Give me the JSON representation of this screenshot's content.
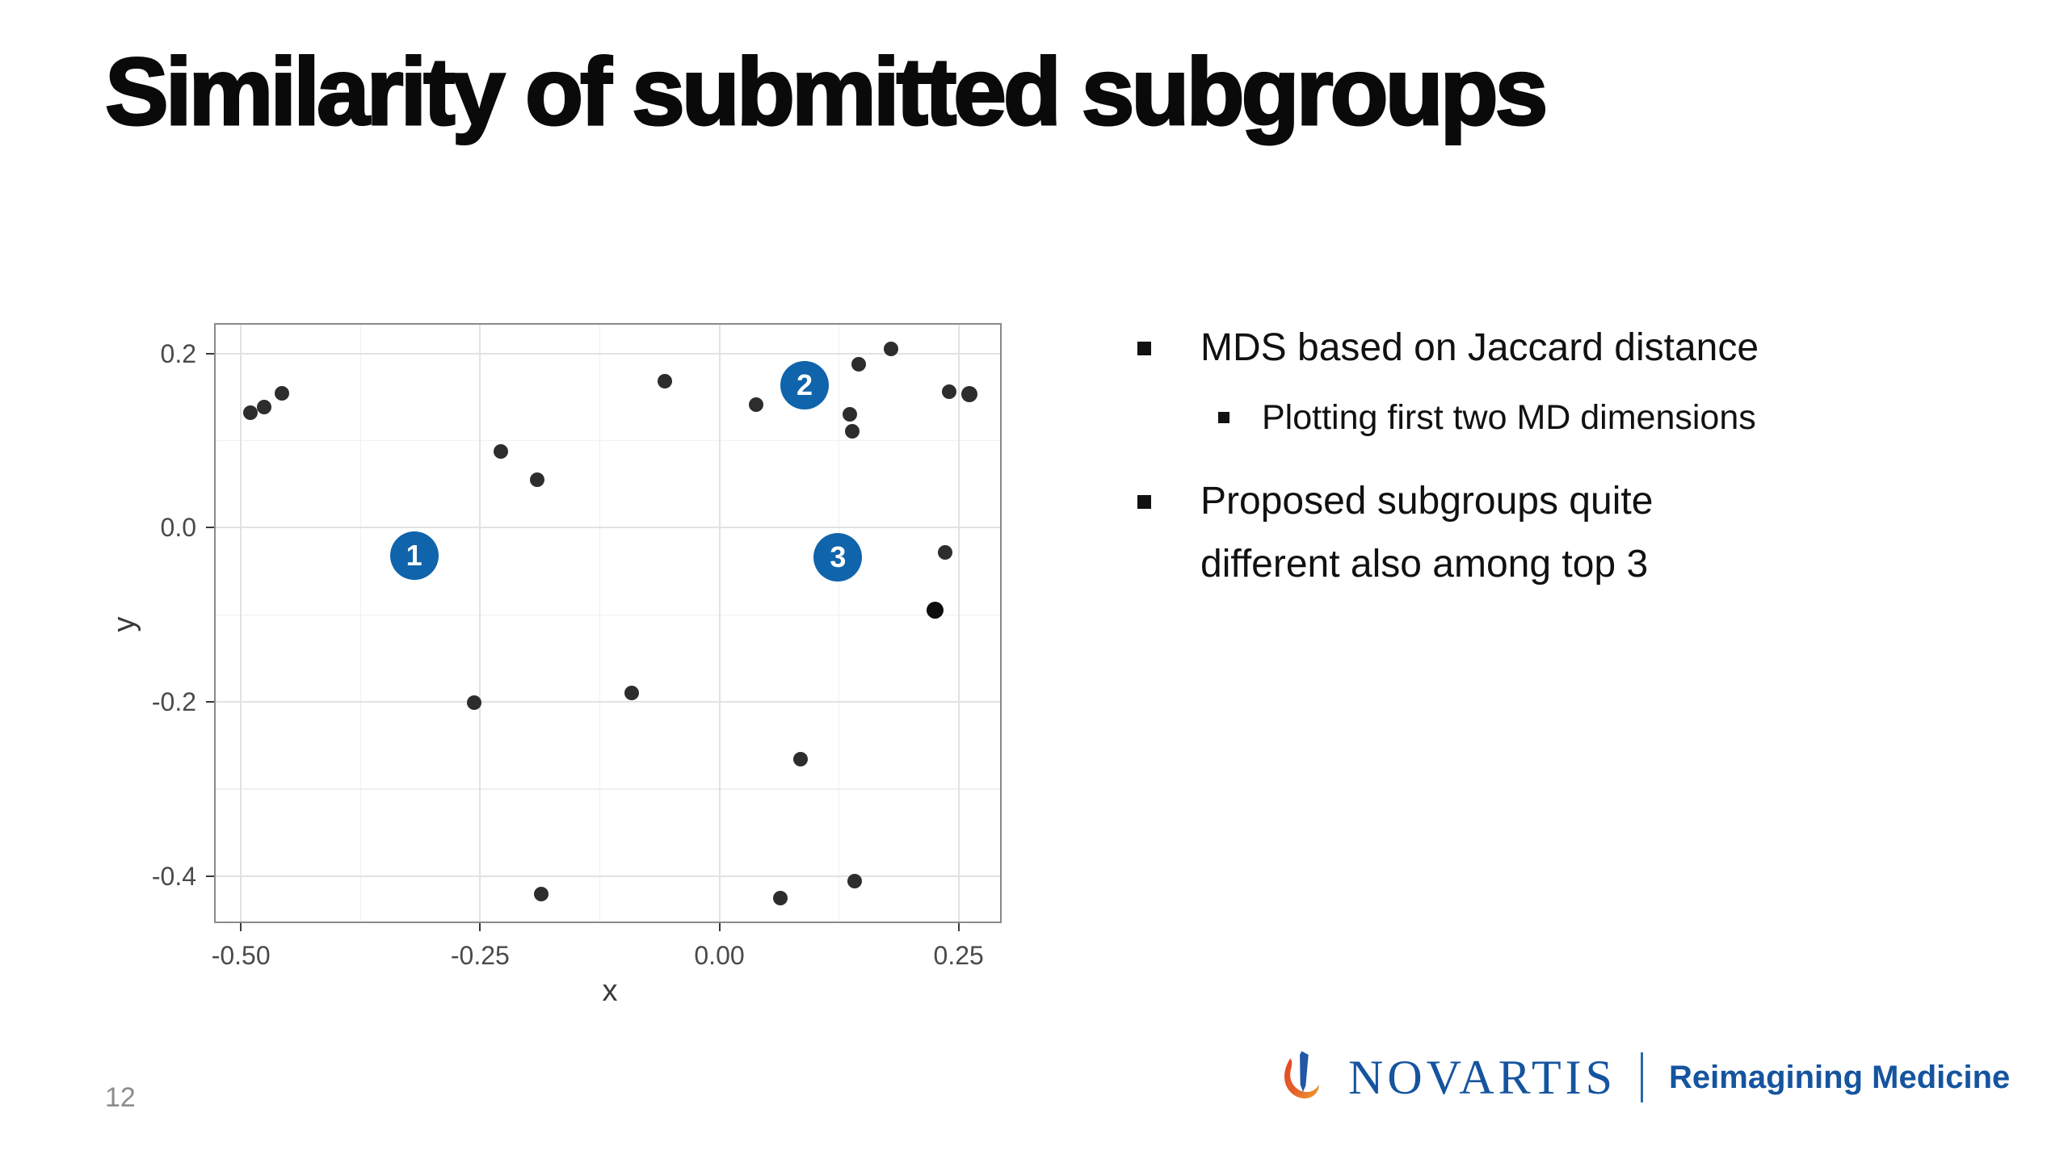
{
  "slide": {
    "title": "Similarity of submitted subgroups"
  },
  "bullets": [
    {
      "level": 1,
      "text": "MDS based on Jaccard distance"
    },
    {
      "level": 2,
      "text": "Plotting first two MD dimensions"
    },
    {
      "level": 1,
      "text": "Proposed subgroups quite different also among top 3"
    }
  ],
  "chart_data": {
    "type": "scatter",
    "title": "",
    "xlabel": "x",
    "ylabel": "y",
    "xlim": [
      -0.528,
      0.295
    ],
    "ylim": [
      -0.454,
      0.235
    ],
    "grid": "major+minor",
    "legend": "none",
    "x_ticks": [
      {
        "v": -0.5,
        "label": "-0.50"
      },
      {
        "v": -0.25,
        "label": "-0.25"
      },
      {
        "v": 0.0,
        "label": "0.00"
      },
      {
        "v": 0.25,
        "label": "0.25"
      }
    ],
    "y_ticks": [
      {
        "v": 0.2,
        "label": "0.2"
      },
      {
        "v": 0.0,
        "label": "0.0"
      },
      {
        "v": -0.2,
        "label": "-0.2"
      },
      {
        "v": -0.4,
        "label": "-0.4"
      }
    ],
    "x_minor": [
      -0.375,
      -0.125,
      0.125
    ],
    "y_minor": [
      0.1,
      -0.1,
      -0.3
    ],
    "points": [
      {
        "x": -0.49,
        "y": 0.132
      },
      {
        "x": -0.476,
        "y": 0.139
      },
      {
        "x": -0.457,
        "y": 0.154
      },
      {
        "x": -0.228,
        "y": 0.088
      },
      {
        "x": -0.19,
        "y": 0.055
      },
      {
        "x": -0.057,
        "y": 0.168
      },
      {
        "x": 0.038,
        "y": 0.141
      },
      {
        "x": 0.095,
        "y": 0.178
      },
      {
        "x": 0.146,
        "y": 0.188
      },
      {
        "x": 0.179,
        "y": 0.205
      },
      {
        "x": 0.136,
        "y": 0.13
      },
      {
        "x": 0.139,
        "y": 0.111
      },
      {
        "x": 0.24,
        "y": 0.156
      },
      {
        "x": 0.261,
        "y": 0.153,
        "s": 20
      },
      {
        "x": 0.236,
        "y": -0.028
      },
      {
        "x": 0.225,
        "y": -0.095,
        "s": 21,
        "emphasis": true
      },
      {
        "x": -0.256,
        "y": -0.201
      },
      {
        "x": -0.092,
        "y": -0.19
      },
      {
        "x": 0.085,
        "y": -0.266
      },
      {
        "x": -0.186,
        "y": -0.421
      },
      {
        "x": 0.064,
        "y": -0.425
      },
      {
        "x": 0.141,
        "y": -0.406
      }
    ],
    "cluster_badges": [
      {
        "label": "1",
        "x": -0.319,
        "y": -0.032
      },
      {
        "label": "2",
        "x": 0.089,
        "y": 0.164
      },
      {
        "label": "3",
        "x": 0.124,
        "y": -0.034
      }
    ],
    "style": {
      "point_color": "#2d2d2d",
      "point_emphasis_color": "#0d0d0d",
      "badge_color": "#1064ab",
      "badge_text_color": "#ffffff",
      "grid_major_color": "#e2e2e2",
      "grid_minor_color": "#f0f0f0",
      "panel_border_color": "#8a8a8a",
      "tick_mark_color": "#3a3a3a"
    }
  },
  "footer": {
    "page_number": "12",
    "brand": "NOVARTIS",
    "tagline": "Reimagining Medicine",
    "brand_color": "#15549f",
    "flame_colors": {
      "blue": "#2257a5",
      "red": "#e2452a",
      "orange": "#f0a22e"
    }
  }
}
